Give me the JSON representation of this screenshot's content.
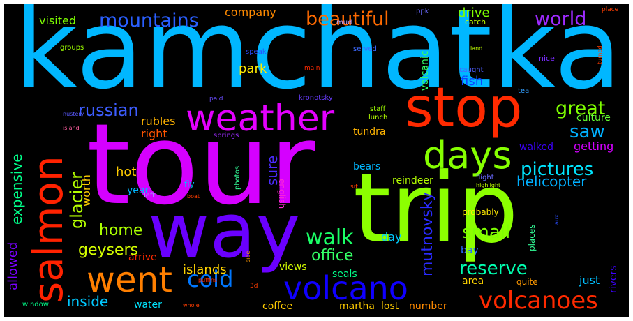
{
  "background": "#000000",
  "words": [
    {
      "text": "kamchatka",
      "color": "#00b7ff"
    },
    {
      "text": "tour",
      "color": "#d500ff"
    },
    {
      "text": "trip",
      "color": "#8cff00"
    },
    {
      "text": "way",
      "color": "#6a00ff"
    },
    {
      "text": "stop",
      "color": "#ff2a00"
    },
    {
      "text": "weather",
      "color": "#e400ff"
    },
    {
      "text": "salmon",
      "color": "#ff2200"
    },
    {
      "text": "days",
      "color": "#86ff00"
    },
    {
      "text": "went",
      "color": "#ff7f00"
    },
    {
      "text": "volcano",
      "color": "#1000ff"
    },
    {
      "text": "volcanoes",
      "color": "#ff2a00"
    },
    {
      "text": "cold",
      "color": "#0077ff"
    },
    {
      "text": "mountains",
      "color": "#2a5fff"
    },
    {
      "text": "beautiful",
      "color": "#ff6a00"
    },
    {
      "text": "world",
      "color": "#9e2bff"
    },
    {
      "text": "russian",
      "color": "#3d5dff"
    },
    {
      "text": "great",
      "color": "#7fff00"
    },
    {
      "text": "saw",
      "color": "#00b0ff"
    },
    {
      "text": "pictures",
      "color": "#00e5ff"
    },
    {
      "text": "helicopter",
      "color": "#00b0ff"
    },
    {
      "text": "walk",
      "color": "#1aff66"
    },
    {
      "text": "small",
      "color": "#7fff00"
    },
    {
      "text": "home",
      "color": "#aaff00"
    },
    {
      "text": "geysers",
      "color": "#d4ff00"
    },
    {
      "text": "glacier",
      "color": "#b5ff00"
    },
    {
      "text": "reserve",
      "color": "#00ffb0"
    },
    {
      "text": "office",
      "color": "#33ff66"
    },
    {
      "text": "mutnovsky",
      "color": "#2a2bff"
    },
    {
      "text": "expensive",
      "color": "#00ff8a"
    },
    {
      "text": "inside",
      "color": "#00c8ff"
    },
    {
      "text": "allowed",
      "color": "#7a00ff"
    },
    {
      "text": "islands",
      "color": "#ffd400"
    },
    {
      "text": "sure",
      "color": "#4b2bff"
    },
    {
      "text": "hot",
      "color": "#ffcc00"
    },
    {
      "text": "park",
      "color": "#ffea00"
    },
    {
      "text": "fish",
      "color": "#0d44ff"
    },
    {
      "text": "drive",
      "color": "#7fff00"
    },
    {
      "text": "visited",
      "color": "#7fff00"
    },
    {
      "text": "company",
      "color": "#ff8a00"
    },
    {
      "text": "rubles",
      "color": "#ffb300"
    },
    {
      "text": "right",
      "color": "#ff5500"
    },
    {
      "text": "getting",
      "color": "#d400ff"
    },
    {
      "text": "walked",
      "color": "#3d00ff"
    },
    {
      "text": "culture",
      "color": "#66ff33"
    },
    {
      "text": "tundra",
      "color": "#ffb300"
    },
    {
      "text": "bears",
      "color": "#00b7ff"
    },
    {
      "text": "reindeer",
      "color": "#b3ff00"
    },
    {
      "text": "worth",
      "color": "#ffcc00"
    },
    {
      "text": "year",
      "color": "#00b7ff"
    },
    {
      "text": "day",
      "color": "#00ccff"
    },
    {
      "text": "bay",
      "color": "#2a6aff"
    },
    {
      "text": "area",
      "color": "#ffd400"
    },
    {
      "text": "views",
      "color": "#d4ff00"
    },
    {
      "text": "seals",
      "color": "#00ff8a"
    },
    {
      "text": "just",
      "color": "#00c0ff"
    },
    {
      "text": "rivers",
      "color": "#3d00ff"
    },
    {
      "text": "coffee",
      "color": "#ffcc00"
    },
    {
      "text": "water",
      "color": "#00e5ff"
    },
    {
      "text": "martha",
      "color": "#ffcc00"
    },
    {
      "text": "lost",
      "color": "#ffcc00"
    },
    {
      "text": "number",
      "color": "#ff8a00"
    },
    {
      "text": "arrive",
      "color": "#ff2a00"
    },
    {
      "text": "english",
      "color": "#ff2ad4"
    },
    {
      "text": "volcanic",
      "color": "#33ff66"
    },
    {
      "text": "places",
      "color": "#33ff99"
    },
    {
      "text": "probably",
      "color": "#ffea00"
    },
    {
      "text": "quite",
      "color": "#ff9900"
    },
    {
      "text": "window",
      "color": "#00ff8a"
    },
    {
      "text": "fly",
      "color": "#00c0ff"
    },
    {
      "text": "left",
      "color": "#9e9eff"
    },
    {
      "text": "photos",
      "color": "#33ff99"
    },
    {
      "text": "springs",
      "color": "#9e2bff"
    },
    {
      "text": "staff",
      "color": "#a0ff00"
    },
    {
      "text": "lunch",
      "color": "#b3ff00"
    },
    {
      "text": "kronotsky",
      "color": "#6a3dff"
    },
    {
      "text": "caught",
      "color": "#4d5dff"
    },
    {
      "text": "catch",
      "color": "#c0ff00"
    },
    {
      "text": "served",
      "color": "#3d6aff"
    },
    {
      "text": "mud",
      "color": "#b39dff"
    },
    {
      "text": "ppk",
      "color": "#6a6aff"
    },
    {
      "text": "groups",
      "color": "#9eff00"
    },
    {
      "text": "speak",
      "color": "#2a4dff"
    },
    {
      "text": "main",
      "color": "#ff2a00"
    },
    {
      "text": "paid",
      "color": "#6a4dff"
    },
    {
      "text": "nice",
      "color": "#7a2bff"
    },
    {
      "text": "tea",
      "color": "#33a0ff"
    },
    {
      "text": "land",
      "color": "#c0ff00"
    },
    {
      "text": "place",
      "color": "#ff3d00"
    },
    {
      "text": "turned",
      "color": "#ff3d00"
    },
    {
      "text": "nustery",
      "color": "#5a5aff"
    },
    {
      "text": "island",
      "color": "#ff5fa0"
    },
    {
      "text": "sit",
      "color": "#ff3d00"
    },
    {
      "text": "boat",
      "color": "#ff3d00"
    },
    {
      "text": "flight",
      "color": "#6a6aff"
    },
    {
      "text": "highlight",
      "color": "#c0ff00"
    },
    {
      "text": "puffins",
      "color": "#ff2a00"
    },
    {
      "text": "3d",
      "color": "#ff3d00"
    },
    {
      "text": "whole",
      "color": "#ff3d00"
    },
    {
      "text": "aux",
      "color": "#2a4dff"
    },
    {
      "text": "side",
      "color": "#ff9900"
    }
  ]
}
